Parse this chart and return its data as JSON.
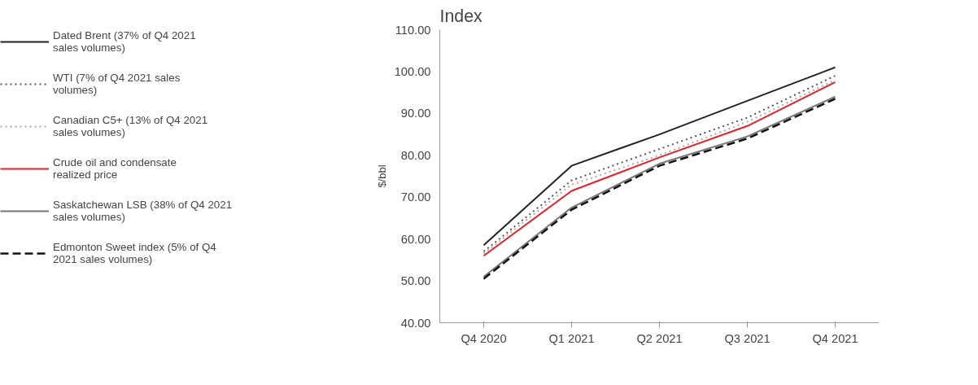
{
  "chart_data": {
    "type": "line",
    "title": "Index",
    "ylabel": "$/bbl",
    "categories": [
      "Q4 2020",
      "Q1 2021",
      "Q2 2021",
      "Q3 2021",
      "Q4 2021"
    ],
    "series": [
      {
        "name": "Dated Brent (37% of Q4 2021 sales volumes)",
        "color": "#222222",
        "line_style": "solid",
        "values": [
          58.5,
          77.5,
          85,
          93,
          101
        ]
      },
      {
        "name": "WTI (7% of Q4 2021 sales volumes)",
        "color": "#555555",
        "line_style": "dotted",
        "values": [
          57,
          74,
          81.5,
          89,
          99
        ]
      },
      {
        "name": "Canadian C5+ (13% of Q4 2021 sales volumes)",
        "color": "#aaaaaa",
        "line_style": "dotted",
        "values": [
          56.5,
          73,
          80,
          88,
          98
        ]
      },
      {
        "name": "Crude oil and condensate realized price",
        "color": "#e8202a",
        "line_style": "solid",
        "values": [
          56,
          71.5,
          79.5,
          87,
          97.5
        ]
      },
      {
        "name": "Saskatchewan LSB (38% of Q4 2021 sales volumes)",
        "color": "#777777",
        "line_style": "solid",
        "values": [
          51,
          67.5,
          78,
          84.5,
          94
        ]
      },
      {
        "name": "Edmonton Sweet index (5% of Q4 2021 sales volumes)",
        "color": "#111111",
        "line_style": "dashed",
        "values": [
          50.5,
          67,
          77.5,
          84,
          93.5
        ]
      }
    ],
    "ylim": [
      40,
      110
    ],
    "yticks": [
      {
        "value": 40,
        "label": "40.00"
      },
      {
        "value": 50,
        "label": "50.00"
      },
      {
        "value": 60,
        "label": "60.00"
      },
      {
        "value": 70,
        "label": "70.00"
      },
      {
        "value": 80,
        "label": "80.00"
      },
      {
        "value": 90,
        "label": "90.00"
      },
      {
        "value": 100,
        "label": "100.00"
      },
      {
        "value": 110,
        "label": "110.00"
      }
    ],
    "grid": false,
    "legend": "left",
    "marker": "none"
  }
}
